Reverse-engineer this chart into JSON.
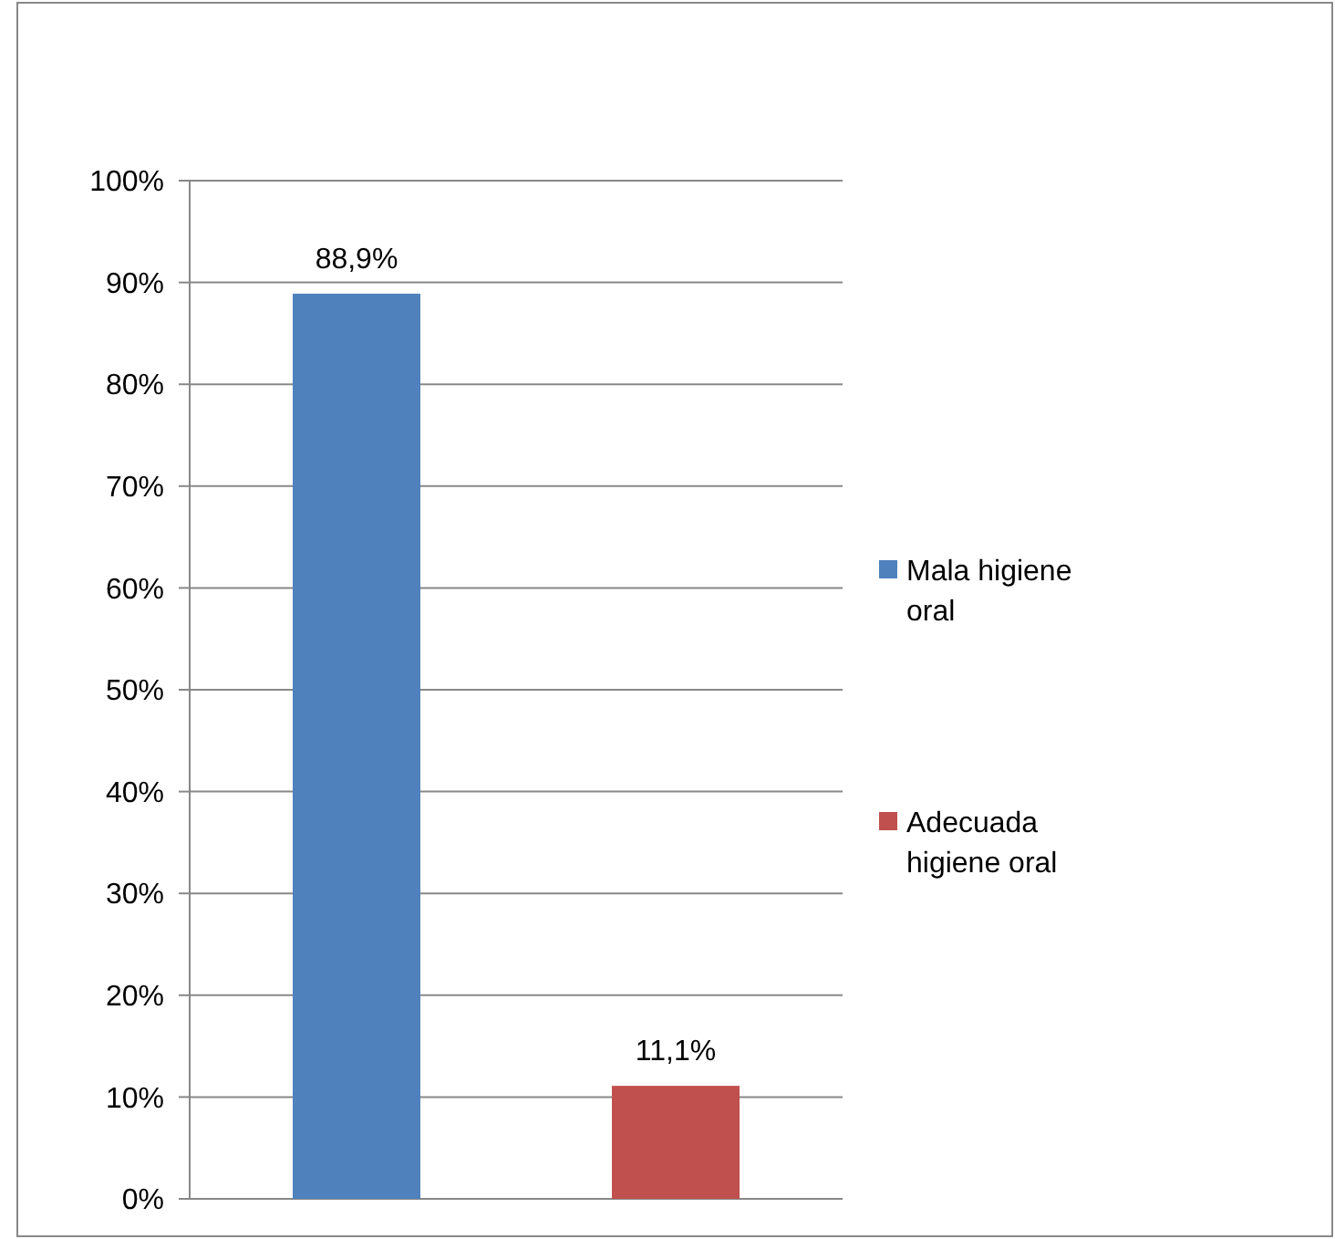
{
  "chart_data": {
    "type": "bar",
    "categories": [
      null
    ],
    "series": [
      {
        "name": "Mala higiene oral",
        "color": "#4f81bd",
        "values": [
          88.9
        ],
        "value_labels": [
          "88,9%"
        ]
      },
      {
        "name": "Adecuada higiene oral",
        "color": "#c0504d",
        "values": [
          11.1
        ],
        "value_labels": [
          "11,1%"
        ]
      }
    ],
    "ylim": [
      0,
      100
    ],
    "yticks": [
      {
        "value": 0,
        "label": "0%"
      },
      {
        "value": 10,
        "label": "10%"
      },
      {
        "value": 20,
        "label": "20%"
      },
      {
        "value": 30,
        "label": "30%"
      },
      {
        "value": 40,
        "label": "40%"
      },
      {
        "value": 50,
        "label": "50%"
      },
      {
        "value": 60,
        "label": "60%"
      },
      {
        "value": 70,
        "label": "70%"
      },
      {
        "value": 80,
        "label": "80%"
      },
      {
        "value": 90,
        "label": "90%"
      },
      {
        "value": 100,
        "label": "100%"
      }
    ],
    "grid": "y",
    "legend": "right"
  }
}
